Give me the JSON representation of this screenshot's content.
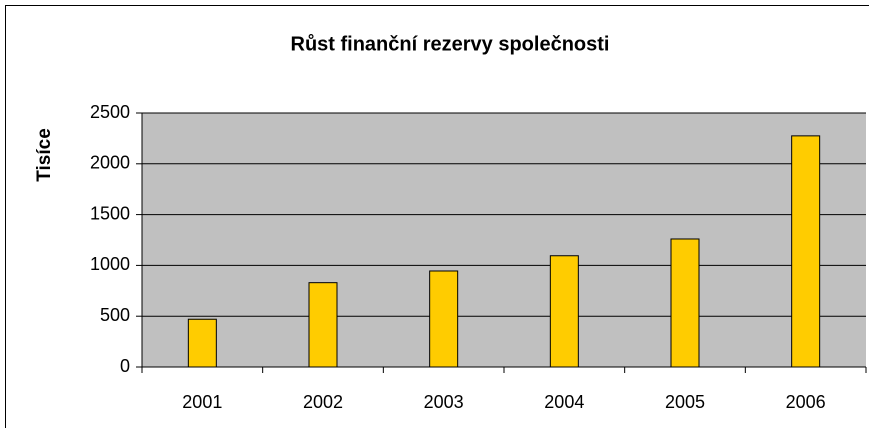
{
  "chart_data": {
    "type": "bar",
    "title": "Růst finanční rezervy společnosti",
    "y_label": "Tisíce",
    "categories": [
      "2001",
      "2002",
      "2003",
      "2004",
      "2005",
      "2006"
    ],
    "values": [
      470,
      830,
      945,
      1095,
      1260,
      2275
    ],
    "color": "#ffcc00",
    "plot_background": "#c0c0c0",
    "ylim": [
      0,
      2500
    ],
    "yticks": [
      0,
      500,
      1000,
      1500,
      2000,
      2500
    ],
    "grid": true
  }
}
